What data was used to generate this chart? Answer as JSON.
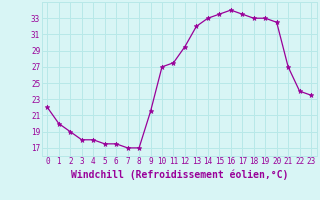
{
  "x": [
    0,
    1,
    2,
    3,
    4,
    5,
    6,
    7,
    8,
    9,
    10,
    11,
    12,
    13,
    14,
    15,
    16,
    17,
    18,
    19,
    20,
    21,
    22,
    23
  ],
  "y": [
    22,
    20,
    19,
    18,
    18,
    17.5,
    17.5,
    17,
    17,
    21.5,
    27,
    27.5,
    29.5,
    32,
    33,
    33.5,
    34,
    33.5,
    33,
    33,
    32.5,
    27,
    24,
    23.5
  ],
  "line_color": "#990099",
  "marker_color": "#990099",
  "bg_color": "#d8f5f5",
  "grid_color": "#b8e8e8",
  "xlabel": "Windchill (Refroidissement éolien,°C)",
  "xlabel_color": "#990099",
  "xlim": [
    -0.5,
    23.5
  ],
  "ylim": [
    16.0,
    35.0
  ],
  "yticks": [
    17,
    19,
    21,
    23,
    25,
    27,
    29,
    31,
    33
  ],
  "xticks": [
    0,
    1,
    2,
    3,
    4,
    5,
    6,
    7,
    8,
    9,
    10,
    11,
    12,
    13,
    14,
    15,
    16,
    17,
    18,
    19,
    20,
    21,
    22,
    23
  ],
  "tick_fontsize": 5.5,
  "xlabel_fontsize": 7.0
}
